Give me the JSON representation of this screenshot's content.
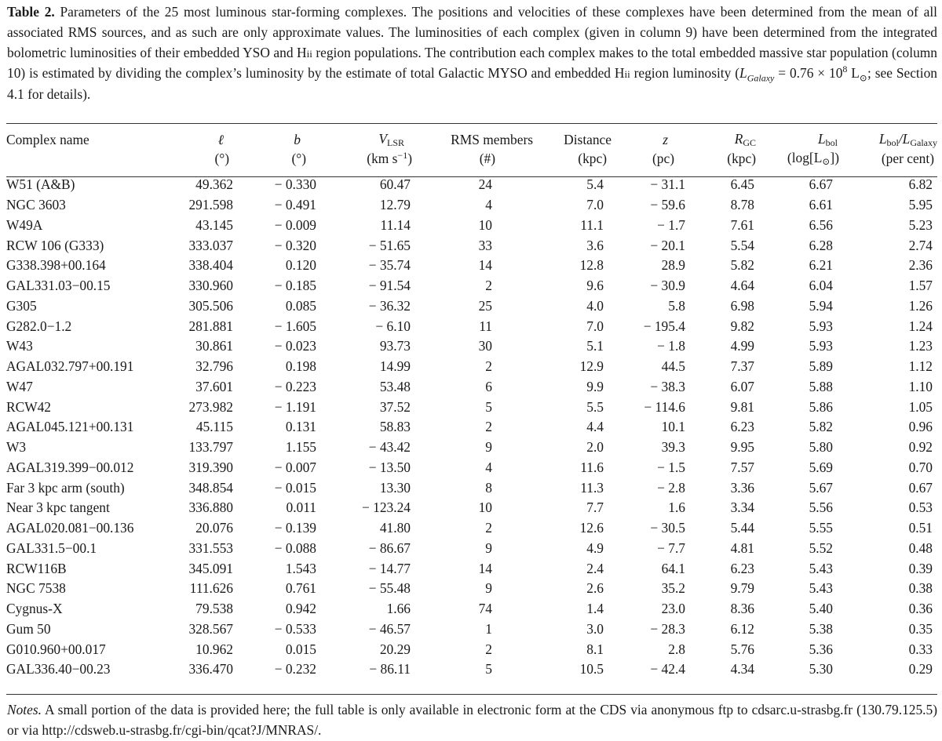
{
  "caption": {
    "label": "Table 2.",
    "text_1": "Parameters of the 25 most luminous star-forming complexes. The positions and velocities of these complexes have been determined from the mean of all associated RMS sources, and as such are only approximate values. The luminosities of each complex (given in column 9) have been determined from the integrated bolometric luminosities of their embedded YSO and H",
    "hii_1": "ii",
    "text_2": " region populations. The contribution each complex makes to the total embedded massive star population (column 10) is estimated by dividing the complex’s luminosity by the estimate of total Galactic MYSO and embedded H",
    "hii_2": "ii",
    "text_3": " region luminosity (",
    "lgal_L": "L",
    "lgal_sub": "Galaxy",
    "lgal_eq": " = 0.76 × 10",
    "lgal_exp": "8",
    "lgal_unit": " L",
    "sun_sub": "⊙",
    "text_4": "; see Section 4.1 for details)."
  },
  "columns": [
    {
      "name": "Complex name",
      "unit": ""
    },
    {
      "name": "ℓ",
      "unit": "(°)"
    },
    {
      "name": "b",
      "unit": "(°)"
    },
    {
      "name_main": "V",
      "name_sub": "LSR",
      "unit_main": "(km s",
      "unit_sup": "−1",
      "unit_end": ")"
    },
    {
      "name": "RMS members",
      "unit": "(#)"
    },
    {
      "name": "Distance",
      "unit": "(kpc)"
    },
    {
      "name": "z",
      "unit": "(pc)"
    },
    {
      "name_main": "R",
      "name_sub": "GC",
      "unit": "(kpc)"
    },
    {
      "name_main": "L",
      "name_sub": "bol",
      "unit_main": "(log[L",
      "unit_sub": "⊙",
      "unit_end": "])"
    },
    {
      "name_main": "L",
      "name_sub": "bol",
      "name_sep": "/L",
      "name_sub2": "Galaxy",
      "unit": "(per cent)"
    }
  ],
  "rows": [
    [
      "W51 (A&B)",
      "49.362",
      "− 0.330",
      "60.47",
      "24",
      "5.4",
      "− 31.1",
      "6.45",
      "6.67",
      "6.82"
    ],
    [
      "NGC 3603",
      "291.598",
      "− 0.491",
      "12.79",
      "4",
      "7.0",
      "− 59.6",
      "8.78",
      "6.61",
      "5.95"
    ],
    [
      "W49A",
      "43.145",
      "− 0.009",
      "11.14",
      "10",
      "11.1",
      "− 1.7",
      "7.61",
      "6.56",
      "5.23"
    ],
    [
      "RCW 106 (G333)",
      "333.037",
      "− 0.320",
      "− 51.65",
      "33",
      "3.6",
      "− 20.1",
      "5.54",
      "6.28",
      "2.74"
    ],
    [
      "G338.398+00.164",
      "338.404",
      "0.120",
      "− 35.74",
      "14",
      "12.8",
      "28.9",
      "5.82",
      "6.21",
      "2.36"
    ],
    [
      "GAL331.03−00.15",
      "330.960",
      "− 0.185",
      "− 91.54",
      "2",
      "9.6",
      "− 30.9",
      "4.64",
      "6.04",
      "1.57"
    ],
    [
      "G305",
      "305.506",
      "0.085",
      "− 36.32",
      "25",
      "4.0",
      "5.8",
      "6.98",
      "5.94",
      "1.26"
    ],
    [
      "G282.0−1.2",
      "281.881",
      "− 1.605",
      "− 6.10",
      "11",
      "7.0",
      "− 195.4",
      "9.82",
      "5.93",
      "1.24"
    ],
    [
      "W43",
      "30.861",
      "− 0.023",
      "93.73",
      "30",
      "5.1",
      "− 1.8",
      "4.99",
      "5.93",
      "1.23"
    ],
    [
      "AGAL032.797+00.191",
      "32.796",
      "0.198",
      "14.99",
      "2",
      "12.9",
      "44.5",
      "7.37",
      "5.89",
      "1.12"
    ],
    [
      "W47",
      "37.601",
      "− 0.223",
      "53.48",
      "6",
      "9.9",
      "− 38.3",
      "6.07",
      "5.88",
      "1.10"
    ],
    [
      "RCW42",
      "273.982",
      "− 1.191",
      "37.52",
      "5",
      "5.5",
      "− 114.6",
      "9.81",
      "5.86",
      "1.05"
    ],
    [
      "AGAL045.121+00.131",
      "45.115",
      "0.131",
      "58.83",
      "2",
      "4.4",
      "10.1",
      "6.23",
      "5.82",
      "0.96"
    ],
    [
      "W3",
      "133.797",
      "1.155",
      "− 43.42",
      "9",
      "2.0",
      "39.3",
      "9.95",
      "5.80",
      "0.92"
    ],
    [
      "AGAL319.399−00.012",
      "319.390",
      "− 0.007",
      "− 13.50",
      "4",
      "11.6",
      "− 1.5",
      "7.57",
      "5.69",
      "0.70"
    ],
    [
      "Far 3 kpc arm (south)",
      "348.854",
      "− 0.015",
      "13.30",
      "8",
      "11.3",
      "− 2.8",
      "3.36",
      "5.67",
      "0.67"
    ],
    [
      "Near 3 kpc tangent",
      "336.880",
      "0.011",
      "− 123.24",
      "10",
      "7.7",
      "1.6",
      "3.34",
      "5.56",
      "0.53"
    ],
    [
      "AGAL020.081−00.136",
      "20.076",
      "− 0.139",
      "41.80",
      "2",
      "12.6",
      "− 30.5",
      "5.44",
      "5.55",
      "0.51"
    ],
    [
      "GAL331.5−00.1",
      "331.553",
      "− 0.088",
      "− 86.67",
      "9",
      "4.9",
      "− 7.7",
      "4.81",
      "5.52",
      "0.48"
    ],
    [
      "RCW116B",
      "345.091",
      "1.543",
      "− 14.77",
      "14",
      "2.4",
      "64.1",
      "6.23",
      "5.43",
      "0.39"
    ],
    [
      "NGC 7538",
      "111.626",
      "0.761",
      "− 55.48",
      "9",
      "2.6",
      "35.2",
      "9.79",
      "5.43",
      "0.38"
    ],
    [
      "Cygnus-X",
      "79.538",
      "0.942",
      "1.66",
      "74",
      "1.4",
      "23.0",
      "8.36",
      "5.40",
      "0.36"
    ],
    [
      "Gum 50",
      "328.567",
      "− 0.533",
      "− 46.57",
      "1",
      "3.0",
      "− 28.3",
      "6.12",
      "5.38",
      "0.35"
    ],
    [
      "G010.960+00.017",
      "10.962",
      "0.015",
      "20.29",
      "2",
      "8.1",
      "2.8",
      "5.76",
      "5.36",
      "0.33"
    ],
    [
      "GAL336.40−00.23",
      "336.470",
      "− 0.232",
      "− 86.11",
      "5",
      "10.5",
      "− 42.4",
      "4.34",
      "5.30",
      "0.29"
    ]
  ],
  "notes": {
    "label": "Notes.",
    "text": " A small portion of the data is provided here; the full table is only available in electronic form at the CDS via anonymous ftp to cdsarc.u-strasbg.fr (130.79.125.5) or via http://cdsweb.u-strasbg.fr/cgi-bin/qcat?J/MNRAS/."
  }
}
